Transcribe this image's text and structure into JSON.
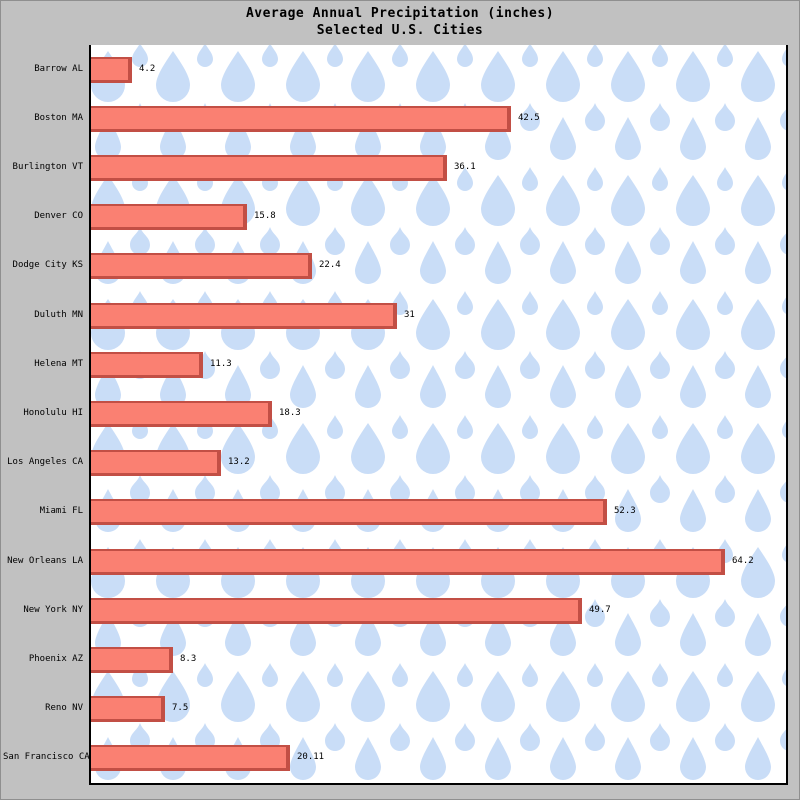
{
  "chart_data": {
    "type": "bar",
    "orientation": "horizontal",
    "title": "Average Annual Precipitation (inches)",
    "subtitle": "Selected U.S. Cities",
    "categories": [
      "Barrow AL",
      "Boston MA",
      "Burlington VT",
      "Denver CO",
      "Dodge City KS",
      "Duluth MN",
      "Helena MT",
      "Honolulu HI",
      "Los Angeles CA",
      "Miami FL",
      "New Orleans LA",
      "New York NY",
      "Phoenix AZ",
      "Reno NV",
      "San Francisco CA"
    ],
    "values": [
      4.2,
      42.5,
      36.1,
      15.8,
      22.4,
      31,
      11.3,
      18.3,
      13.2,
      52.3,
      64.2,
      49.7,
      8.3,
      7.5,
      20.11
    ],
    "value_labels": [
      "4.2",
      "42.5",
      "36.1",
      "15.8",
      "22.4",
      "31",
      "11.3",
      "18.3",
      "13.2",
      "52.3",
      "64.2",
      "49.7",
      "8.3",
      "7.5",
      "20.11"
    ],
    "xlabel": "",
    "ylabel": "",
    "xlim": [
      0,
      70
    ],
    "grid": false,
    "legend": "none",
    "colors": {
      "bar_fill": "#fa8072",
      "bar_border": "#c24f45",
      "plot_background": "#ffffff",
      "raindrop_blue": "#c9ddf7",
      "window_background": "#c1c1c1",
      "axis_black": "#000000",
      "title_text": "#000000"
    }
  }
}
